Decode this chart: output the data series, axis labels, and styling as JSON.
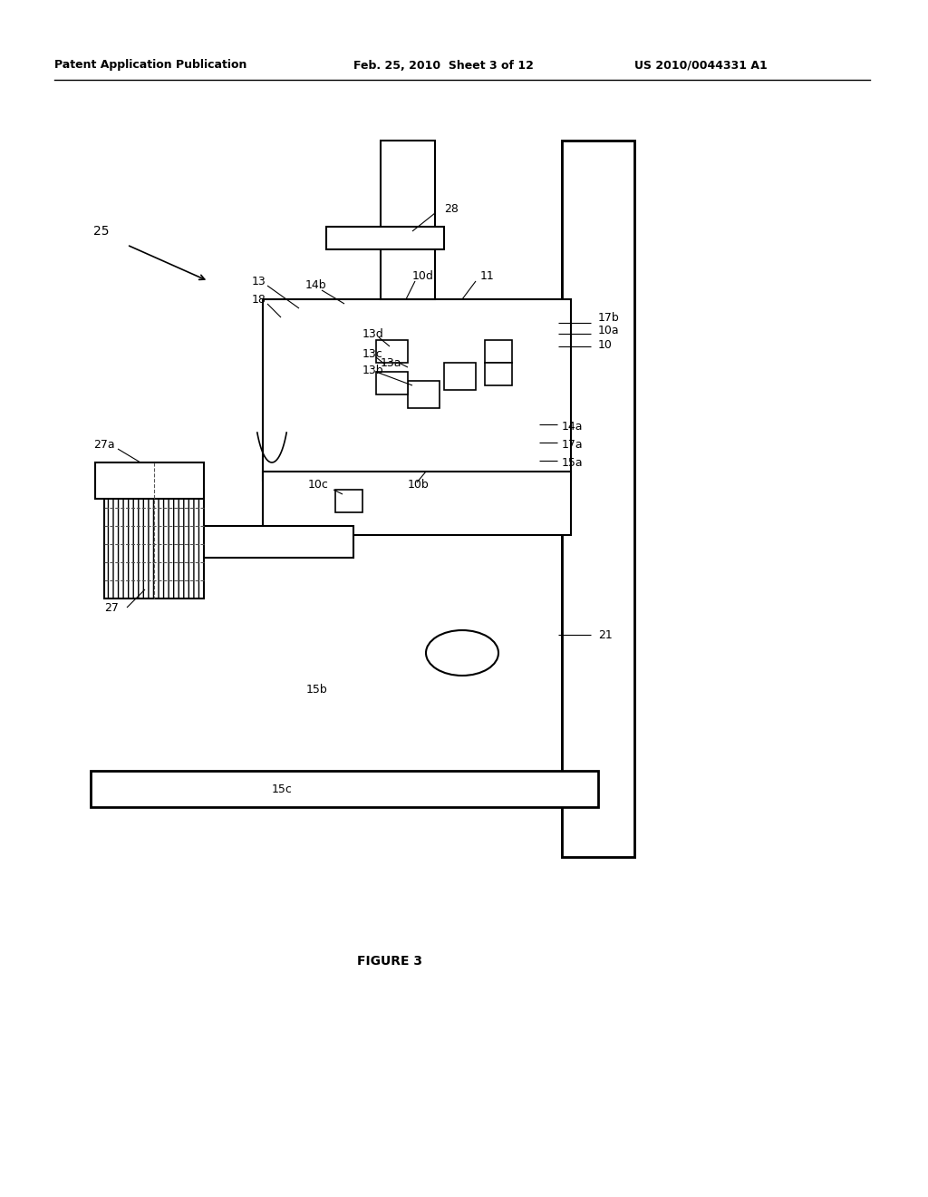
{
  "header_left": "Patent Application Publication",
  "header_mid": "Feb. 25, 2010  Sheet 3 of 12",
  "header_right": "US 2010/0044331 A1",
  "figure_label": "FIGURE 3",
  "bg_color": "#ffffff",
  "line_color": "#000000",
  "label_25": "25",
  "label_28": "28",
  "label_11": "11",
  "label_10d": "10d",
  "label_14b": "14b",
  "label_13": "13",
  "label_18": "18",
  "label_13d": "13d",
  "label_13c": "13c",
  "label_13a": "13a",
  "label_13b": "13b",
  "label_10c": "10c",
  "label_10b": "10b",
  "label_27a": "27a",
  "label_27": "27",
  "label_15b": "15b",
  "label_15c": "15c",
  "label_17b": "17b",
  "label_10a": "10a",
  "label_10": "10",
  "label_14a": "14a",
  "label_17a": "17a",
  "label_15a": "15a",
  "label_21": "21"
}
